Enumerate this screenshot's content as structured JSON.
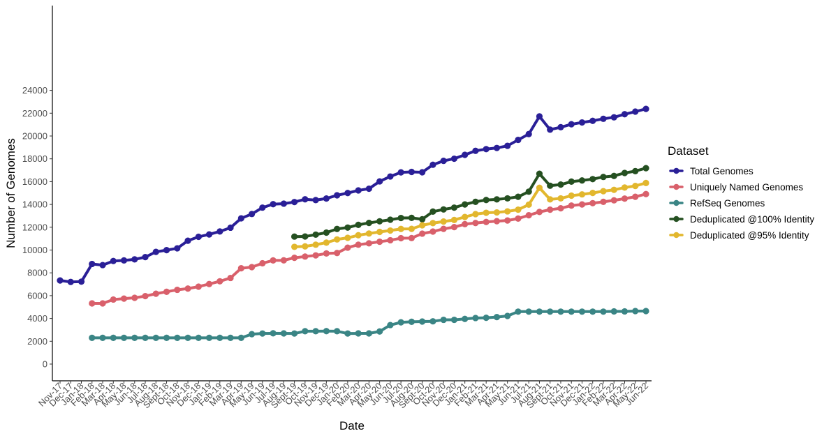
{
  "chart_data": {
    "type": "line",
    "xlabel": "Date",
    "ylabel": "Number of Genomes",
    "ylim": [
      -1000,
      24500
    ],
    "yticks": [
      0,
      2000,
      4000,
      6000,
      8000,
      10000,
      12000,
      14000,
      16000,
      18000,
      20000,
      22000,
      24000
    ],
    "grid": false,
    "legend": {
      "title": "Dataset",
      "position": "right"
    },
    "categories": [
      "Nov-17",
      "Dec-17",
      "Jan-18",
      "Feb-18",
      "Mar-18",
      "Apr-18",
      "May-18",
      "Jun-18",
      "Jul-18",
      "Aug-18",
      "Sept-18",
      "Oct-18",
      "Nov-18",
      "Dec-18",
      "Jan-19",
      "Feb-19",
      "Mar-19",
      "Apr-19",
      "May-19",
      "Jun-19",
      "Jul-19",
      "Aug-19",
      "Sept-19",
      "Oct-19",
      "Nov-19",
      "Dec-19",
      "Jan-20",
      "Feb-20",
      "Mar-20",
      "Apr-20",
      "May-20",
      "Jun-20",
      "Jul-20",
      "Aug-20",
      "Sept-20",
      "Oct-20",
      "Nov-20",
      "Dec-20",
      "Jan-21",
      "Feb-21",
      "Mar-21",
      "Apr-21",
      "May-21",
      "Jun-21",
      "Jul-21",
      "Aug-21",
      "Sept-21",
      "Oct-21",
      "Nov-21",
      "Dec-21",
      "Jan-22",
      "Feb-22",
      "Mar-22",
      "Apr-22",
      "May-22",
      "Jun-22"
    ],
    "series": [
      {
        "name": "Total Genomes",
        "color": "#2a1f97",
        "values": [
          7330,
          7200,
          7230,
          8780,
          8680,
          9040,
          9090,
          9180,
          9380,
          9840,
          9990,
          10150,
          10820,
          11160,
          11370,
          11630,
          11960,
          12780,
          13160,
          13720,
          14020,
          14070,
          14210,
          14450,
          14380,
          14520,
          14800,
          15000,
          15230,
          15380,
          16020,
          16450,
          16810,
          16850,
          16820,
          17480,
          17820,
          18010,
          18350,
          18700,
          18850,
          18950,
          19140,
          19660,
          20170,
          21720,
          20560,
          20770,
          21030,
          21190,
          21330,
          21510,
          21640,
          21910,
          22140,
          22380
        ]
      },
      {
        "name": "Uniquely Named Genomes",
        "color": "#d9606b",
        "values": [
          null,
          null,
          null,
          5320,
          5320,
          5660,
          5740,
          5810,
          5960,
          6170,
          6340,
          6510,
          6620,
          6790,
          7020,
          7260,
          7550,
          8400,
          8500,
          8840,
          9090,
          9100,
          9320,
          9430,
          9530,
          9700,
          9740,
          10210,
          10470,
          10590,
          10730,
          10860,
          11040,
          11050,
          11440,
          11620,
          11860,
          12010,
          12270,
          12370,
          12460,
          12530,
          12590,
          12760,
          13050,
          13340,
          13540,
          13660,
          13900,
          14000,
          14110,
          14230,
          14360,
          14510,
          14670,
          14910
        ]
      },
      {
        "name": "RefSeq Genomes",
        "color": "#3a8585",
        "values": [
          null,
          null,
          null,
          2300,
          2300,
          2300,
          2300,
          2300,
          2300,
          2300,
          2300,
          2300,
          2300,
          2300,
          2300,
          2300,
          2300,
          2300,
          2620,
          2680,
          2700,
          2690,
          2680,
          2880,
          2880,
          2890,
          2880,
          2680,
          2690,
          2690,
          2860,
          3420,
          3660,
          3710,
          3730,
          3750,
          3880,
          3880,
          3960,
          4040,
          4060,
          4120,
          4220,
          4600,
          4600,
          4600,
          4600,
          4600,
          4600,
          4600,
          4600,
          4600,
          4620,
          4620,
          4650,
          4650
        ]
      },
      {
        "name": "Deduplicated @100% Identity",
        "color": "#255021",
        "values": [
          null,
          null,
          null,
          null,
          null,
          null,
          null,
          null,
          null,
          null,
          null,
          null,
          null,
          null,
          null,
          null,
          null,
          null,
          null,
          null,
          null,
          null,
          11180,
          11190,
          11350,
          11530,
          11850,
          11970,
          12210,
          12380,
          12520,
          12660,
          12810,
          12820,
          12700,
          13370,
          13560,
          13720,
          14000,
          14230,
          14390,
          14440,
          14530,
          14670,
          15120,
          16690,
          15640,
          15740,
          16000,
          16100,
          16220,
          16410,
          16500,
          16760,
          16920,
          17180
        ]
      },
      {
        "name": "Deduplicated @95% Identity",
        "color": "#e2b72e",
        "values": [
          null,
          null,
          null,
          null,
          null,
          null,
          null,
          null,
          null,
          null,
          null,
          null,
          null,
          null,
          null,
          null,
          null,
          null,
          null,
          null,
          null,
          null,
          10280,
          10320,
          10470,
          10650,
          10930,
          11070,
          11300,
          11450,
          11590,
          11710,
          11850,
          11860,
          12170,
          12360,
          12500,
          12640,
          12900,
          13150,
          13270,
          13300,
          13390,
          13540,
          13980,
          15460,
          14440,
          14530,
          14770,
          14880,
          15010,
          15160,
          15280,
          15480,
          15620,
          15880
        ]
      }
    ]
  }
}
